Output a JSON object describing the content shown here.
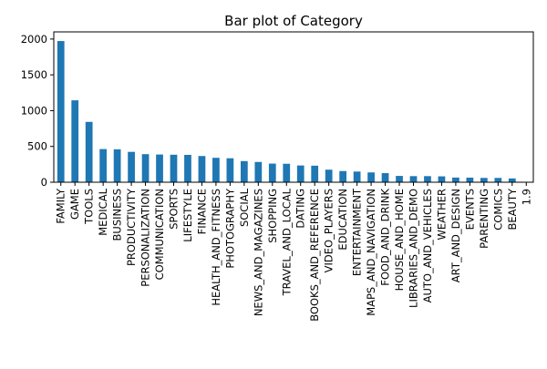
{
  "chart_data": {
    "type": "bar",
    "title": "Bar plot of Category",
    "xlabel": "",
    "ylabel": "",
    "ylim": [
      0,
      2100
    ],
    "yticks": [
      0,
      500,
      1000,
      1500,
      2000
    ],
    "ytick_labels": [
      "0",
      "500",
      "1000",
      "1500",
      "2000"
    ],
    "grid": false,
    "legend": "none",
    "bar_color": "#1f77b4",
    "categories": [
      "FAMILY",
      "GAME",
      "TOOLS",
      "MEDICAL",
      "BUSINESS",
      "PRODUCTIVITY",
      "PERSONALIZATION",
      "COMMUNICATION",
      "SPORTS",
      "LIFESTYLE",
      "FINANCE",
      "HEALTH_AND_FITNESS",
      "PHOTOGRAPHY",
      "SOCIAL",
      "NEWS_AND_MAGAZINES",
      "SHOPPING",
      "TRAVEL_AND_LOCAL",
      "DATING",
      "BOOKS_AND_REFERENCE",
      "VIDEO_PLAYERS",
      "EDUCATION",
      "ENTERTAINMENT",
      "MAPS_AND_NAVIGATION",
      "FOOD_AND_DRINK",
      "HOUSE_AND_HOME",
      "LIBRARIES_AND_DEMO",
      "AUTO_AND_VEHICLES",
      "WEATHER",
      "ART_AND_DESIGN",
      "EVENTS",
      "PARENTING",
      "COMICS",
      "BEAUTY",
      "1.9"
    ],
    "values": [
      1972,
      1144,
      843,
      463,
      460,
      424,
      392,
      387,
      384,
      382,
      366,
      341,
      335,
      295,
      283,
      260,
      258,
      234,
      231,
      175,
      156,
      149,
      137,
      127,
      88,
      85,
      85,
      82,
      65,
      64,
      60,
      60,
      53,
      1
    ]
  }
}
